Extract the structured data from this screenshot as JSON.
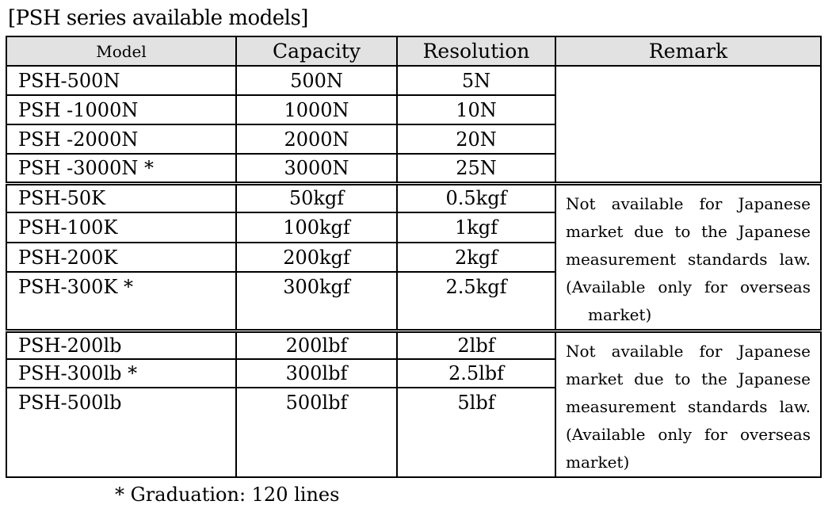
{
  "page": {
    "title": "[PSH series available models]",
    "footnote": "* Graduation: 120 lines"
  },
  "colors": {
    "header_bg": "#e2e2e2",
    "border": "#000000",
    "text": "#000000"
  },
  "table": {
    "headers": {
      "model": "Model",
      "capacity": "Capacity",
      "resolution": "Resolution",
      "remark": "Remark"
    },
    "sections": [
      {
        "unit": "N",
        "rows": [
          {
            "model": "PSH-500N",
            "capacity": "500N",
            "resolution": "5N"
          },
          {
            "model": "PSH -1000N",
            "capacity": "1000N",
            "resolution": "10N"
          },
          {
            "model": "PSH -2000N",
            "capacity": "2000N",
            "resolution": "20N"
          },
          {
            "model": "PSH -3000N *",
            "capacity": "3000N",
            "resolution": "25N"
          }
        ],
        "remark_lines": []
      },
      {
        "unit": "kgf",
        "rows": [
          {
            "model": "PSH-50K",
            "capacity": "50kgf",
            "resolution": "0.5kgf"
          },
          {
            "model": "PSH-100K",
            "capacity": "100kgf",
            "resolution": "1kgf"
          },
          {
            "model": "PSH-200K",
            "capacity": "200kgf",
            "resolution": "2kgf"
          },
          {
            "model": "PSH-300K *",
            "capacity": "300kgf",
            "resolution": "2.5kgf"
          }
        ],
        "remark_lines": [
          "Not available for Japanese",
          "market due to the Japanese",
          "measurement standards law.",
          "(Available only for overseas",
          "market)"
        ]
      },
      {
        "unit": "lbf",
        "rows": [
          {
            "model": "PSH-200lb",
            "capacity": "200lbf",
            "resolution": "2lbf"
          },
          {
            "model": "PSH-300lb *",
            "capacity": "300lbf",
            "resolution": "2.5lbf"
          },
          {
            "model": "PSH-500lb",
            "capacity": "500lbf",
            "resolution": "5lbf"
          }
        ],
        "remark_lines": [
          "Not available for Japanese",
          "market due to the Japanese",
          "measurement standards law.",
          "(Available only for overseas",
          "market)"
        ]
      }
    ]
  }
}
